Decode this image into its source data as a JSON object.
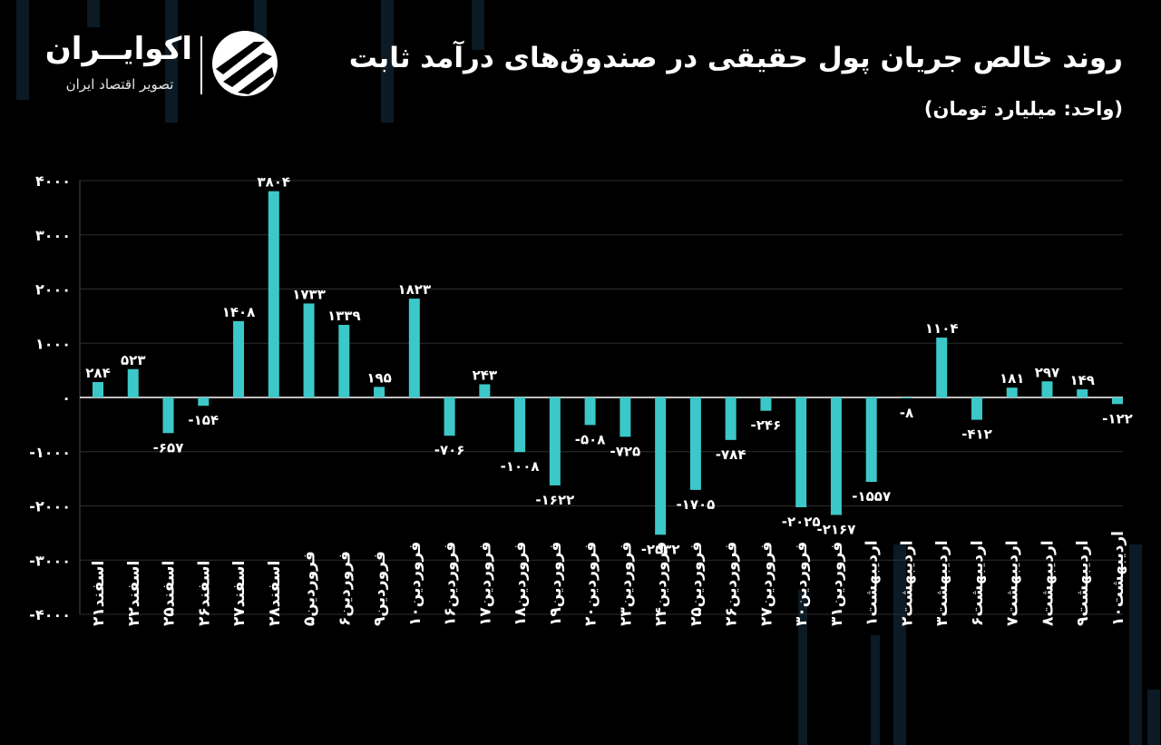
{
  "brand": {
    "name": "اکوایــران",
    "tagline": "تصویر اقتصاد ایران"
  },
  "colors": {
    "bar": "#3cc8c8",
    "background": "#000000",
    "grid": "#2e2e2e"
  },
  "chart_data": {
    "type": "bar",
    "title": "روند خالص جریان پول حقیقی در صندوق‌های درآمد ثابت",
    "subtitle": "(واحد: میلیارد تومان)",
    "ylim": [
      -4000,
      4000
    ],
    "yticks": [
      4000,
      3000,
      2000,
      1000,
      0,
      -1000,
      -2000,
      -3000,
      -4000
    ],
    "ytick_labels": [
      "۴۰۰۰",
      "۳۰۰۰",
      "۲۰۰۰",
      "۱۰۰۰",
      "۰",
      "-۱۰۰۰",
      "-۲۰۰۰",
      "-۳۰۰۰",
      "-۴۰۰۰"
    ],
    "grid": true,
    "categories": [
      "اسفند۲۱",
      "اسفند۲۲",
      "اسفند۲۵",
      "اسفند۲۶",
      "اسفند۲۷",
      "اسفند۲۸",
      "فروردین۵",
      "فروردین۶",
      "فروردین۹",
      "فروردین۱۰",
      "فروردین۱۶",
      "فروردین۱۷",
      "فروردین۱۸",
      "فروردین۱۹",
      "فروردین۲۰",
      "فروردین۲۳",
      "فروردین۲۴",
      "فروردین۲۵",
      "فروردین۲۶",
      "فروردین۲۷",
      "فروردین۳۰",
      "فروردین۳۱",
      "اردیبهشت۱",
      "اردیبهشت۲",
      "اردیبهشت۳",
      "اردیبهشت۶",
      "اردیبهشت۷",
      "اردیبهشت۸",
      "اردیبهشت۹",
      "اردیبهشت۱۰"
    ],
    "values": [
      284,
      523,
      -657,
      -154,
      1408,
      3804,
      1733,
      1339,
      195,
      1823,
      -706,
      243,
      -1008,
      -1622,
      -508,
      -725,
      -2532,
      -1705,
      -784,
      -246,
      -2025,
      -2167,
      -1557,
      -8,
      1104,
      -412,
      181,
      297,
      149,
      -122
    ],
    "value_labels": [
      "۲۸۴",
      "۵۲۳",
      "-۶۵۷",
      "-۱۵۴",
      "۱۴۰۸",
      "۳۸۰۴",
      "۱۷۳۳",
      "۱۳۳۹",
      "۱۹۵",
      "۱۸۲۳",
      "-۷۰۶",
      "۲۴۳",
      "-۱۰۰۸",
      "-۱۶۲۲",
      "-۵۰۸",
      "-۷۲۵",
      "-۲۵۳۲",
      "-۱۷۰۵",
      "-۷۸۴",
      "-۲۴۶",
      "-۲۰۲۵",
      "-۲۱۶۷",
      "-۱۵۵۷",
      "-۸",
      "۱۱۰۴",
      "-۴۱۲",
      "۱۸۱",
      "۲۹۷",
      "۱۴۹",
      "-۱۲۲"
    ]
  }
}
